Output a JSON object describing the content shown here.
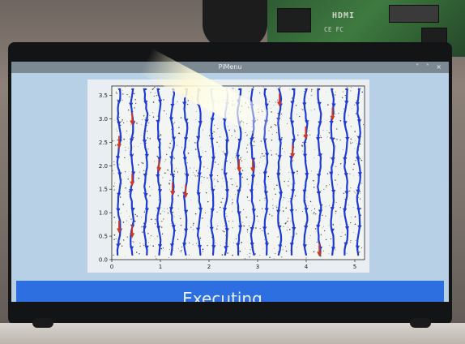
{
  "window": {
    "title": "PiMenu",
    "controls": "˅ ˄ ×"
  },
  "status": {
    "text": "Executing..."
  },
  "hardware": {
    "board_label": "HDMI",
    "board_marks": "CE  FC"
  },
  "colors": {
    "screen_bg": "#b8d0e6",
    "status_bar": "#2d6fe0",
    "arrow_blue": "#1f3bd6",
    "arrow_red": "#d2381f"
  },
  "chart_data": {
    "type": "quiver",
    "x_ticks": [
      "0",
      "1",
      "2",
      "3",
      "4",
      "5"
    ],
    "y_ticks": [
      "0.0",
      "0.5",
      "1.0",
      "1.5",
      "2.0",
      "2.5",
      "3.0",
      "3.5"
    ],
    "xlim": [
      0,
      5.2
    ],
    "ylim": [
      0,
      3.7
    ],
    "columns_x": [
      0.15,
      0.42,
      0.7,
      0.97,
      1.25,
      1.52,
      1.8,
      2.07,
      2.35,
      2.62,
      2.9,
      3.17,
      3.45,
      3.72,
      3.99,
      4.27,
      4.54,
      4.82,
      5.08
    ],
    "red_arrows": [
      {
        "x": 0.42,
        "y": 3.0
      },
      {
        "x": 0.15,
        "y": 2.5
      },
      {
        "x": 0.42,
        "y": 1.7
      },
      {
        "x": 0.97,
        "y": 2.0
      },
      {
        "x": 1.25,
        "y": 1.5
      },
      {
        "x": 1.52,
        "y": 1.45
      },
      {
        "x": 2.62,
        "y": 2.0
      },
      {
        "x": 2.9,
        "y": 2.0
      },
      {
        "x": 3.45,
        "y": 3.4
      },
      {
        "x": 3.72,
        "y": 2.3
      },
      {
        "x": 3.99,
        "y": 2.7
      },
      {
        "x": 4.54,
        "y": 3.1
      },
      {
        "x": 0.15,
        "y": 0.7
      },
      {
        "x": 0.42,
        "y": 0.6
      },
      {
        "x": 4.27,
        "y": 0.2
      }
    ],
    "grid": false,
    "legend": "none"
  }
}
